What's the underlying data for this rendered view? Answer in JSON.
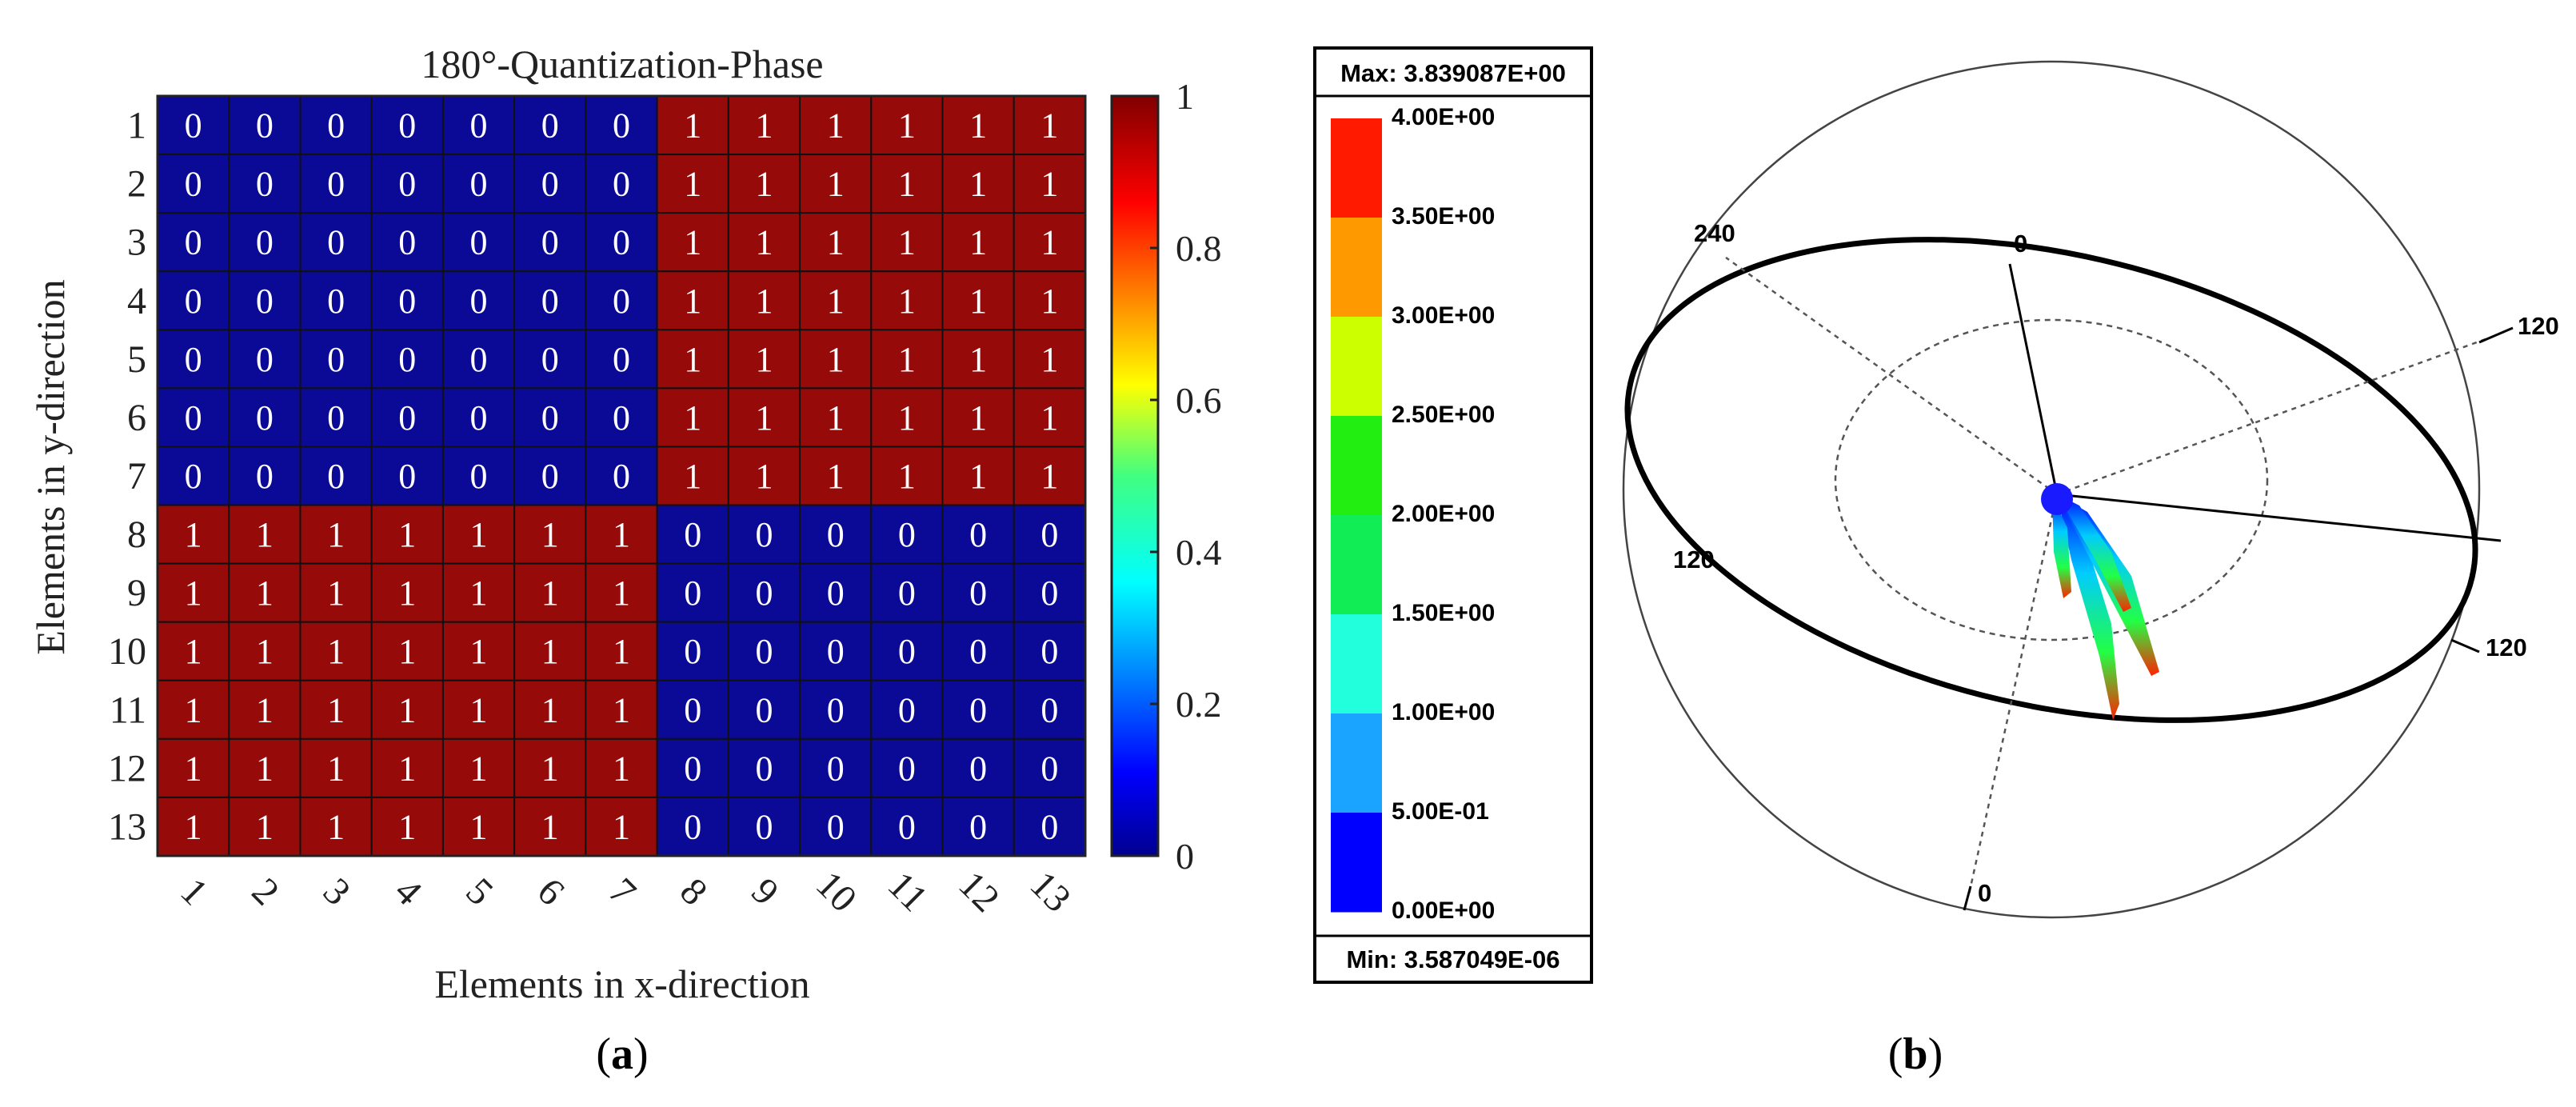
{
  "panel_a": {
    "caption_open": "(",
    "caption_letter": "a",
    "caption_close": ")"
  },
  "panel_b": {
    "caption_open": "(",
    "caption_letter": "b",
    "caption_close": ")",
    "legend": {
      "max_label": "Max: 3.839087E+00",
      "min_label": "Min: 3.587049E-06",
      "levels": [
        "4.00E+00",
        "3.50E+00",
        "3.00E+00",
        "2.50E+00",
        "2.00E+00",
        "1.50E+00",
        "1.00E+00",
        "5.00E-01",
        "0.00E+00"
      ],
      "band_colors": [
        "#ff1a00",
        "#ff9900",
        "#ccff00",
        "#22ee11",
        "#11ee55",
        "#22ffdd",
        "#1aa3ff",
        "#0000ff"
      ]
    },
    "sphere_labels": {
      "top_0": "0",
      "left_240": "240",
      "right_120": "120",
      "left_120": "120",
      "rim_120": "120",
      "bottom_0": "0"
    },
    "colors": {
      "rim": "#000000",
      "grid": "#555555",
      "lobe_top": "#ff2200",
      "lobe_mid": "#22ff44",
      "lobe_low": "#00ccff",
      "lobe_base": "#0000ff"
    }
  },
  "chart_data": [
    {
      "type": "heatmap",
      "title": "180°-Quantization-Phase",
      "xlabel": "Elements in x-direction",
      "ylabel": "Elements in y-direction",
      "x_categories": [
        "1",
        "2",
        "3",
        "4",
        "5",
        "6",
        "7",
        "8",
        "9",
        "10",
        "11",
        "12",
        "13"
      ],
      "y_categories": [
        "1",
        "2",
        "3",
        "4",
        "5",
        "6",
        "7",
        "8",
        "9",
        "10",
        "11",
        "12",
        "13"
      ],
      "values": [
        [
          0,
          0,
          0,
          0,
          0,
          0,
          0,
          1,
          1,
          1,
          1,
          1,
          1
        ],
        [
          0,
          0,
          0,
          0,
          0,
          0,
          0,
          1,
          1,
          1,
          1,
          1,
          1
        ],
        [
          0,
          0,
          0,
          0,
          0,
          0,
          0,
          1,
          1,
          1,
          1,
          1,
          1
        ],
        [
          0,
          0,
          0,
          0,
          0,
          0,
          0,
          1,
          1,
          1,
          1,
          1,
          1
        ],
        [
          0,
          0,
          0,
          0,
          0,
          0,
          0,
          1,
          1,
          1,
          1,
          1,
          1
        ],
        [
          0,
          0,
          0,
          0,
          0,
          0,
          0,
          1,
          1,
          1,
          1,
          1,
          1
        ],
        [
          0,
          0,
          0,
          0,
          0,
          0,
          0,
          1,
          1,
          1,
          1,
          1,
          1
        ],
        [
          1,
          1,
          1,
          1,
          1,
          1,
          1,
          0,
          0,
          0,
          0,
          0,
          0
        ],
        [
          1,
          1,
          1,
          1,
          1,
          1,
          1,
          0,
          0,
          0,
          0,
          0,
          0
        ],
        [
          1,
          1,
          1,
          1,
          1,
          1,
          1,
          0,
          0,
          0,
          0,
          0,
          0
        ],
        [
          1,
          1,
          1,
          1,
          1,
          1,
          1,
          0,
          0,
          0,
          0,
          0,
          0
        ],
        [
          1,
          1,
          1,
          1,
          1,
          1,
          1,
          0,
          0,
          0,
          0,
          0,
          0
        ],
        [
          1,
          1,
          1,
          1,
          1,
          1,
          1,
          0,
          0,
          0,
          0,
          0,
          0
        ]
      ],
      "colorbar": {
        "range": [
          0,
          1
        ],
        "ticks": [
          "0",
          "0.2",
          "0.4",
          "0.6",
          "0.8",
          "1"
        ]
      },
      "colors": {
        "zero": "#0a0a96",
        "one": "#960a0a",
        "cell_text": "#ffffff"
      }
    }
  ]
}
